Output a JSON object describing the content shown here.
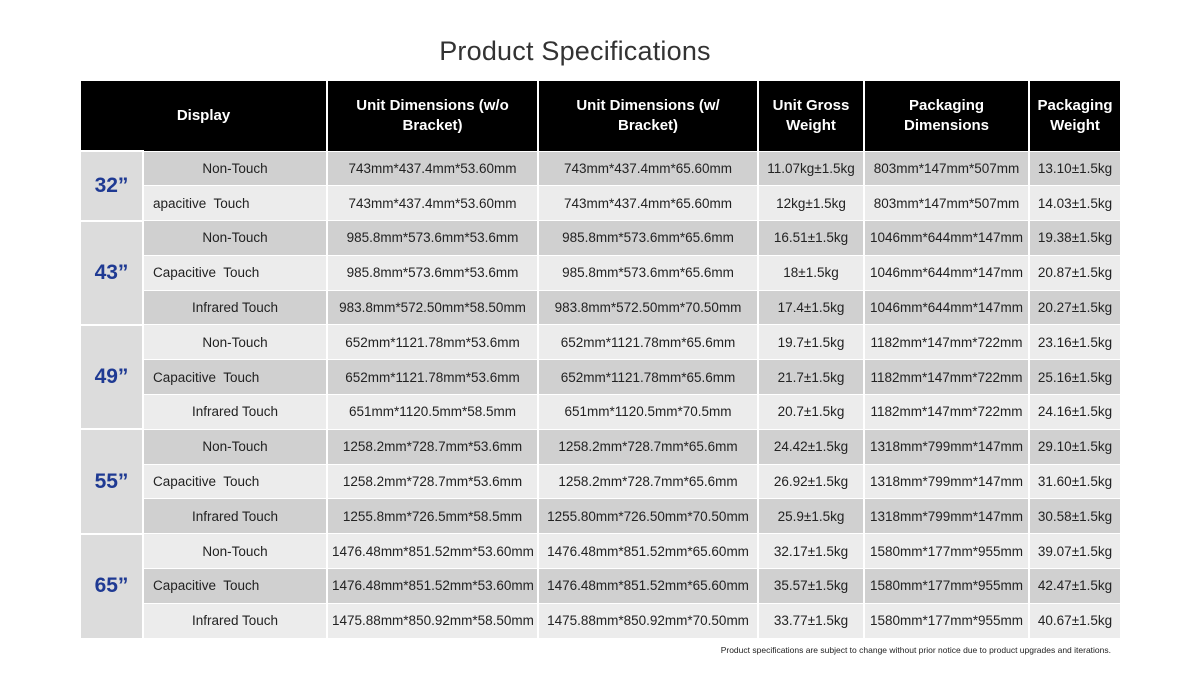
{
  "title": "Product Specifications",
  "headers": {
    "display": "Display",
    "unit_wo": "Unit Dimensions (w/o Bracket)",
    "unit_w": "Unit Dimensions (w/ Bracket)",
    "gross": "Unit Gross Weight",
    "pkg_dim": "Packaging Dimensions",
    "pkg_wt": "Packaging Weight"
  },
  "groups": [
    {
      "size": "32”",
      "rows": [
        {
          "type": "Non-Touch",
          "unit_wo": "743mm*437.4mm*53.60mm",
          "unit_w": "743mm*437.4mm*65.60mm",
          "gross": "11.07kg±1.5kg",
          "pkg_dim": "803mm*147mm*507mm",
          "pkg_wt": "13.10±1.5kg"
        },
        {
          "type": "apacitive  Touch",
          "unit_wo": "743mm*437.4mm*53.60mm",
          "unit_w": "743mm*437.4mm*65.60mm",
          "gross": "12kg±1.5kg",
          "pkg_dim": "803mm*147mm*507mm",
          "pkg_wt": "14.03±1.5kg"
        }
      ]
    },
    {
      "size": "43”",
      "rows": [
        {
          "type": "Non-Touch",
          "unit_wo": "985.8mm*573.6mm*53.6mm",
          "unit_w": "985.8mm*573.6mm*65.6mm",
          "gross": "16.51±1.5kg",
          "pkg_dim": "1046mm*644mm*147mm",
          "pkg_wt": "19.38±1.5kg"
        },
        {
          "type": "Capacitive  Touch",
          "unit_wo": "985.8mm*573.6mm*53.6mm",
          "unit_w": "985.8mm*573.6mm*65.6mm",
          "gross": "18±1.5kg",
          "pkg_dim": "1046mm*644mm*147mm",
          "pkg_wt": "20.87±1.5kg"
        },
        {
          "type": "Infrared Touch",
          "unit_wo": "983.8mm*572.50mm*58.50mm",
          "unit_w": "983.8mm*572.50mm*70.50mm",
          "gross": "17.4±1.5kg",
          "pkg_dim": "1046mm*644mm*147mm",
          "pkg_wt": "20.27±1.5kg"
        }
      ]
    },
    {
      "size": "49”",
      "rows": [
        {
          "type": "Non-Touch",
          "unit_wo": "652mm*1121.78mm*53.6mm",
          "unit_w": "652mm*1121.78mm*65.6mm",
          "gross": "19.7±1.5kg",
          "pkg_dim": "1182mm*147mm*722mm",
          "pkg_wt": "23.16±1.5kg"
        },
        {
          "type": "Capacitive  Touch",
          "unit_wo": "652mm*1121.78mm*53.6mm",
          "unit_w": "652mm*1121.78mm*65.6mm",
          "gross": "21.7±1.5kg",
          "pkg_dim": "1182mm*147mm*722mm",
          "pkg_wt": "25.16±1.5kg"
        },
        {
          "type": "Infrared Touch",
          "unit_wo": "651mm*1120.5mm*58.5mm",
          "unit_w": "651mm*1120.5mm*70.5mm",
          "gross": "20.7±1.5kg",
          "pkg_dim": "1182mm*147mm*722mm",
          "pkg_wt": "24.16±1.5kg"
        }
      ]
    },
    {
      "size": "55”",
      "rows": [
        {
          "type": "Non-Touch",
          "unit_wo": "1258.2mm*728.7mm*53.6mm",
          "unit_w": "1258.2mm*728.7mm*65.6mm",
          "gross": "24.42±1.5kg",
          "pkg_dim": "1318mm*799mm*147mm",
          "pkg_wt": "29.10±1.5kg"
        },
        {
          "type": "Capacitive  Touch",
          "unit_wo": "1258.2mm*728.7mm*53.6mm",
          "unit_w": "1258.2mm*728.7mm*65.6mm",
          "gross": "26.92±1.5kg",
          "pkg_dim": "1318mm*799mm*147mm",
          "pkg_wt": "31.60±1.5kg"
        },
        {
          "type": "Infrared Touch",
          "unit_wo": "1255.8mm*726.5mm*58.5mm",
          "unit_w": "1255.80mm*726.50mm*70.50mm",
          "gross": "25.9±1.5kg",
          "pkg_dim": "1318mm*799mm*147mm",
          "pkg_wt": "30.58±1.5kg"
        }
      ]
    },
    {
      "size": "65”",
      "rows": [
        {
          "type": "Non-Touch",
          "unit_wo": "1476.48mm*851.52mm*53.60mm",
          "unit_w": "1476.48mm*851.52mm*65.60mm",
          "gross": "32.17±1.5kg",
          "pkg_dim": "1580mm*177mm*955mm",
          "pkg_wt": "39.07±1.5kg"
        },
        {
          "type": "Capacitive  Touch",
          "unit_wo": "1476.48mm*851.52mm*53.60mm",
          "unit_w": "1476.48mm*851.52mm*65.60mm",
          "gross": "35.57±1.5kg",
          "pkg_dim": "1580mm*177mm*955mm",
          "pkg_wt": "42.47±1.5kg"
        },
        {
          "type": "Infrared Touch",
          "unit_wo": "1475.88mm*850.92mm*58.50mm",
          "unit_w": "1475.88mm*850.92mm*70.50mm",
          "gross": "33.77±1.5kg",
          "pkg_dim": "1580mm*177mm*955mm",
          "pkg_wt": "40.67±1.5kg"
        }
      ]
    }
  ],
  "disclaimer": "Product specifications are subject to change without prior notice due to product upgrades and iterations.",
  "colors": {
    "header_bg": "#000000",
    "size_label": "#1f3a93",
    "row_dark": "#d0d0d0",
    "row_light": "#ececec"
  }
}
